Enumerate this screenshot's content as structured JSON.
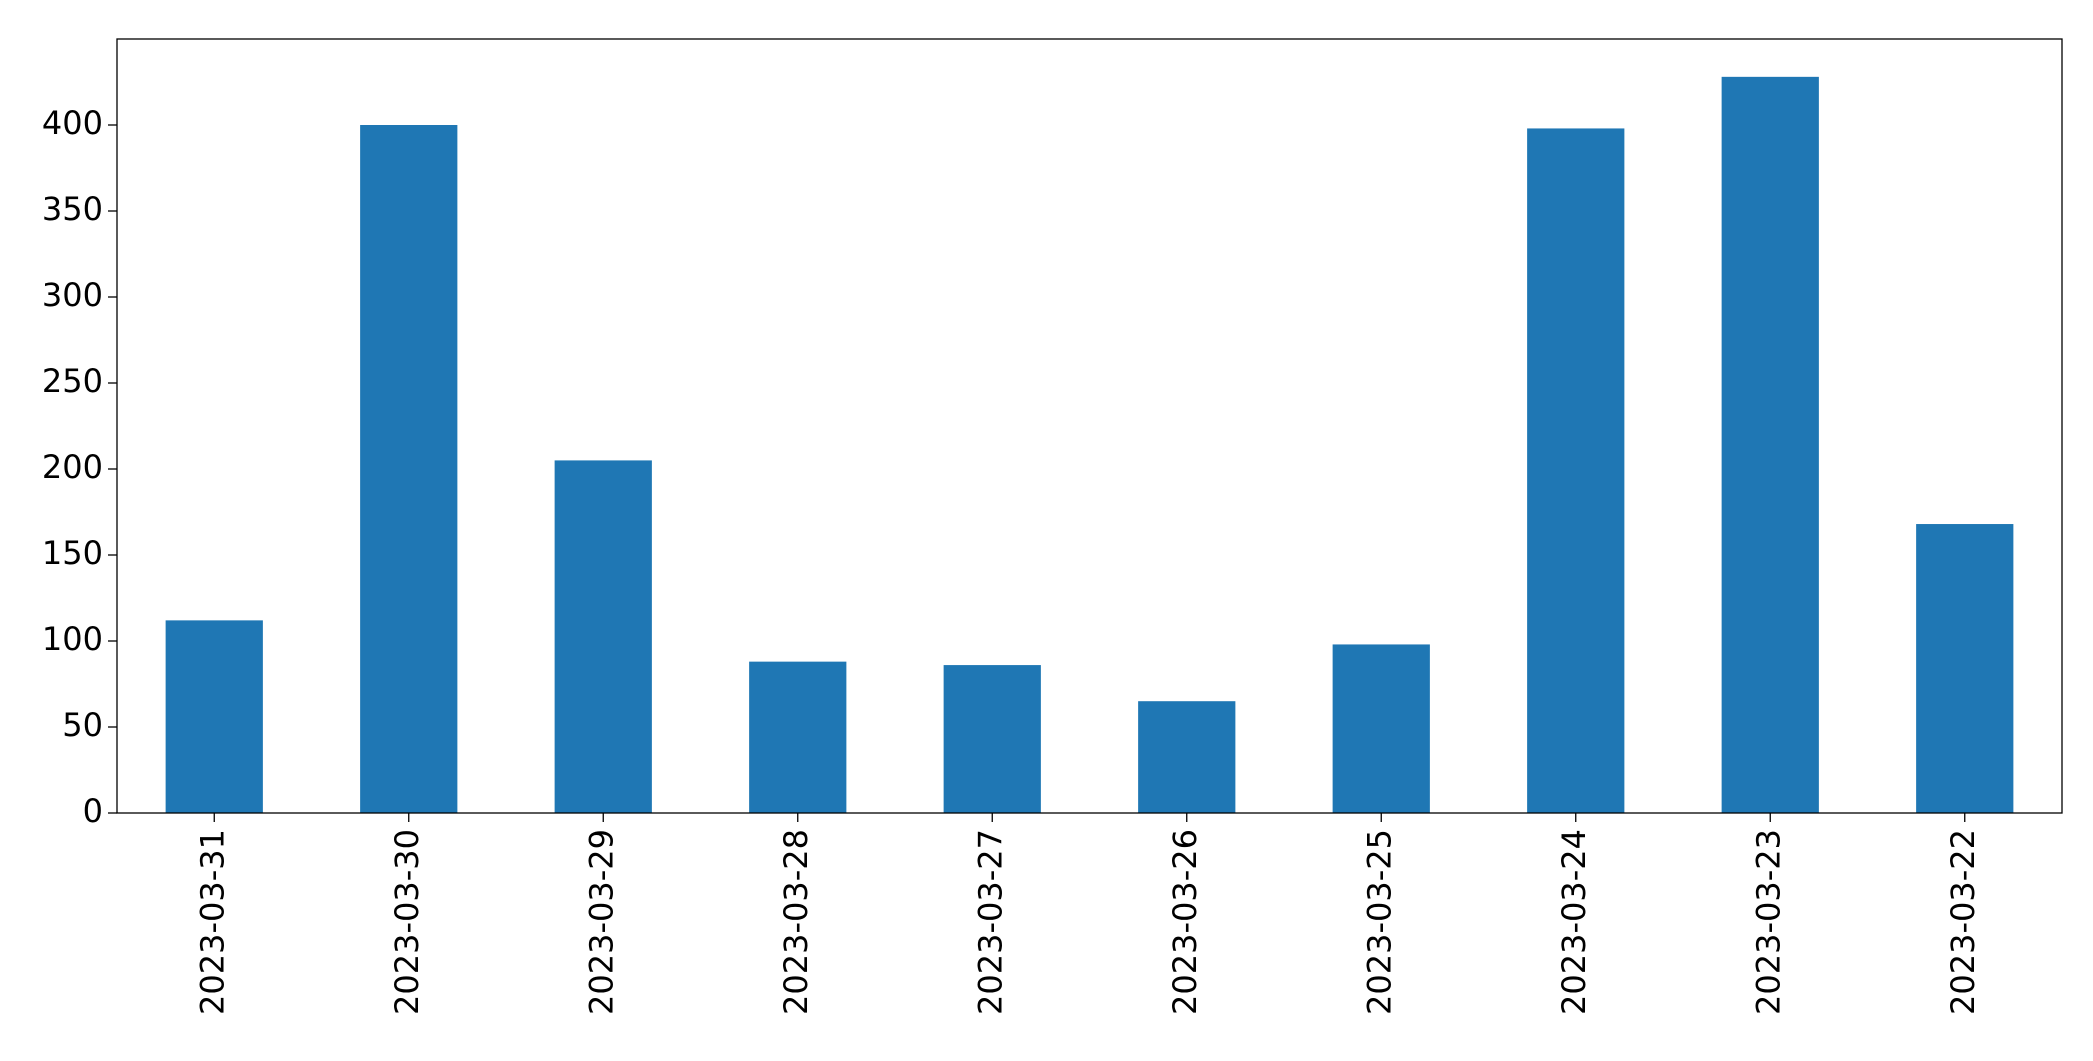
{
  "chart_data": {
    "type": "bar",
    "categories": [
      "2023-03-31",
      "2023-03-30",
      "2023-03-29",
      "2023-03-28",
      "2023-03-27",
      "2023-03-26",
      "2023-03-25",
      "2023-03-24",
      "2023-03-23",
      "2023-03-22"
    ],
    "values": [
      112,
      400,
      205,
      88,
      86,
      65,
      98,
      398,
      428,
      168
    ],
    "color": "#1f77b4",
    "ylim": [
      0,
      450
    ],
    "yticks": [
      0,
      50,
      100,
      150,
      200,
      250,
      300,
      350,
      400
    ],
    "grid": false
  }
}
